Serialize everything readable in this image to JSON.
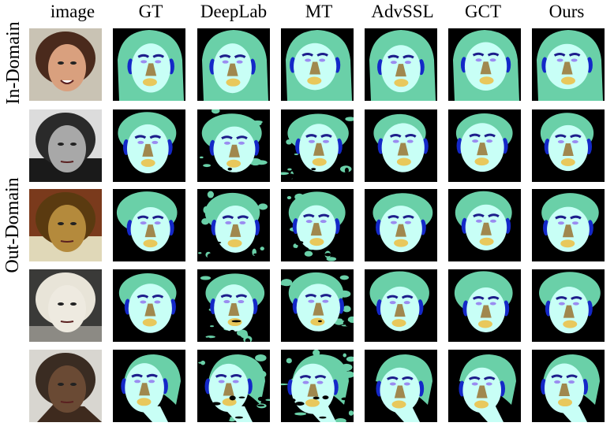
{
  "columns": [
    "image",
    "GT",
    "DeepLab",
    "MT",
    "AdvSSL",
    "GCT",
    "Ours"
  ],
  "row_groups": [
    "In-Domain",
    "Out-Domain"
  ],
  "colors": {
    "background": "#000000",
    "hair": "#6ad0a8",
    "skin": "#c8fff6",
    "nose": "#a0884e",
    "lips": "#e8c85c",
    "brows": "#1e1e8c",
    "eyes": "#9a8cf0",
    "ears": "#1428c8"
  },
  "rows": [
    {
      "photo": "smiling-woman-brown-hair"
    },
    {
      "photo": "grayscale-portrait-man"
    },
    {
      "photo": "painted-child-face"
    },
    {
      "photo": "white-sculpture-head"
    },
    {
      "photo": "bronze-bust-face"
    }
  ]
}
